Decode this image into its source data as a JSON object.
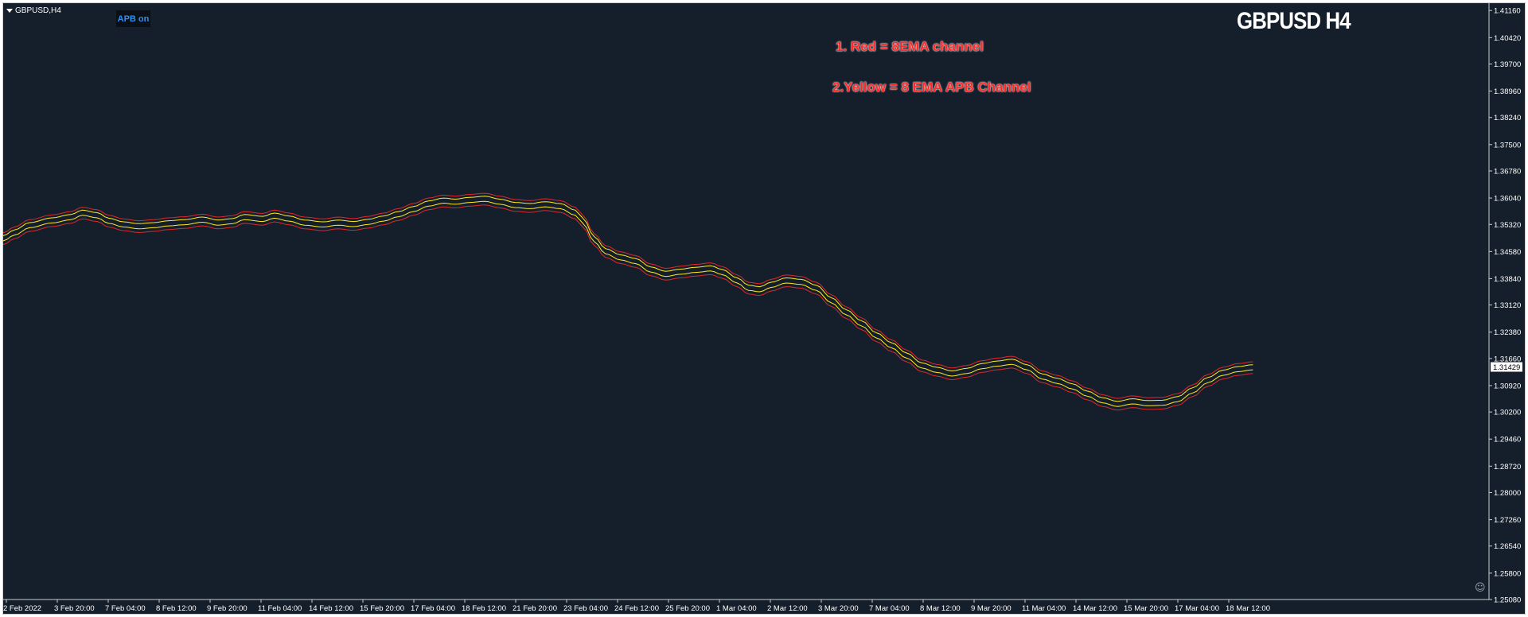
{
  "window": {
    "symbol_label": "GBPUSD,H4"
  },
  "badge": {
    "text": "APB on"
  },
  "overlay": {
    "title": "GBPUSD H4",
    "legend_line_1": "1. Red = 8EMA channel",
    "legend_line_2": "2.Yellow = 8 EMA APB Channel"
  },
  "colors": {
    "background": "#151f2b",
    "frame": "#c8ccd0",
    "axis_text": "#ffffff",
    "red_channel": "#e0262b",
    "yellow_channel": "#ffea1f",
    "price_tag_bg": "#ffffff",
    "price_tag_text": "#000000"
  },
  "chart_data": {
    "type": "line",
    "title": "GBPUSD H4",
    "y_ticks": [
      "1.41160",
      "1.40420",
      "1.39700",
      "1.38960",
      "1.38240",
      "1.37500",
      "1.36780",
      "1.36040",
      "1.35320",
      "1.34580",
      "1.33840",
      "1.33120",
      "1.32380",
      "1.31660",
      "1.30920",
      "1.30200",
      "1.29460",
      "1.28720",
      "1.28000",
      "1.27260",
      "1.26540",
      "1.25800",
      "1.25080"
    ],
    "ylim": [
      1.2508,
      1.4136
    ],
    "x_ticks": [
      "2 Feb 2022",
      "3 Feb 20:00",
      "7 Feb 04:00",
      "8 Feb 12:00",
      "9 Feb 20:00",
      "11 Feb 04:00",
      "14 Feb 12:00",
      "15 Feb 20:00",
      "17 Feb 04:00",
      "18 Feb 12:00",
      "21 Feb 20:00",
      "23 Feb 04:00",
      "24 Feb 12:00",
      "25 Feb 20:00",
      "1 Mar 04:00",
      "2 Mar 12:00",
      "3 Mar 20:00",
      "7 Mar 04:00",
      "8 Mar 12:00",
      "9 Mar 20:00",
      "11 Mar 04:00",
      "14 Mar 12:00",
      "15 Mar 20:00",
      "17 Mar 04:00",
      "18 Mar 12:00"
    ],
    "bars_per_tick": 8,
    "bar_count": 190,
    "current_price": "1.31429",
    "grid": false,
    "center_anchors": [
      [
        0,
        1.3497
      ],
      [
        3,
        1.3513
      ],
      [
        7,
        1.3533
      ],
      [
        13,
        1.3546
      ],
      [
        18,
        1.3555
      ],
      [
        21,
        1.3567
      ],
      [
        25,
        1.356
      ],
      [
        28,
        1.3545
      ],
      [
        32,
        1.3535
      ],
      [
        36,
        1.353
      ],
      [
        40,
        1.3533
      ],
      [
        44,
        1.3538
      ],
      [
        48,
        1.3541
      ],
      [
        53,
        1.3548
      ],
      [
        57,
        1.354
      ],
      [
        61,
        1.3544
      ],
      [
        64,
        1.3555
      ],
      [
        69,
        1.355
      ],
      [
        72,
        1.3559
      ],
      [
        76,
        1.3551
      ],
      [
        80,
        1.354
      ],
      [
        85,
        1.3535
      ],
      [
        89,
        1.354
      ],
      [
        93,
        1.3536
      ],
      [
        97,
        1.3542
      ],
      [
        101,
        1.3551
      ],
      [
        105,
        1.3563
      ],
      [
        109,
        1.3577
      ],
      [
        113,
        1.3592
      ],
      [
        117,
        1.36
      ],
      [
        120,
        1.3597
      ],
      [
        124,
        1.3602
      ],
      [
        128,
        1.3605
      ],
      [
        132,
        1.3597
      ],
      [
        136,
        1.3588
      ],
      [
        140,
        1.3585
      ],
      [
        144,
        1.359
      ],
      [
        148,
        1.3585
      ],
      [
        152,
        1.3567
      ],
      [
        154,
        1.3545
      ],
      [
        157,
        1.3495
      ],
      [
        160,
        1.3462
      ],
      [
        164,
        1.3445
      ],
      [
        168,
        1.3435
      ],
      [
        172,
        1.3412
      ],
      [
        176,
        1.34
      ],
      [
        180,
        1.3406
      ],
      [
        184,
        1.3411
      ],
      [
        188,
        1.3415
      ],
      [
        191,
        1.3405
      ],
      [
        195,
        1.3382
      ],
      [
        198,
        1.3362
      ],
      [
        201,
        1.3358
      ],
      [
        204,
        1.337
      ],
      [
        208,
        1.3382
      ],
      [
        212,
        1.3378
      ],
      [
        216,
        1.3362
      ],
      [
        220,
        1.3328
      ],
      [
        224,
        1.3295
      ],
      [
        228,
        1.3265
      ],
      [
        232,
        1.3232
      ],
      [
        236,
        1.3205
      ],
      [
        240,
        1.3177
      ],
      [
        244,
        1.315
      ],
      [
        248,
        1.3138
      ],
      [
        252,
        1.3128
      ],
      [
        256,
        1.3135
      ],
      [
        260,
        1.3148
      ],
      [
        264,
        1.3155
      ],
      [
        268,
        1.316
      ],
      [
        272,
        1.3145
      ],
      [
        276,
        1.312
      ],
      [
        280,
        1.3108
      ],
      [
        284,
        1.3093
      ],
      [
        288,
        1.3073
      ],
      [
        292,
        1.3055
      ],
      [
        296,
        1.3045
      ],
      [
        300,
        1.3052
      ],
      [
        304,
        1.3047
      ],
      [
        308,
        1.3048
      ],
      [
        312,
        1.3058
      ],
      [
        316,
        1.3082
      ],
      [
        320,
        1.311
      ],
      [
        324,
        1.313
      ],
      [
        328,
        1.314
      ],
      [
        332,
        1.3145
      ]
    ],
    "series": [
      {
        "style": "red upper",
        "offset": 0.0012
      },
      {
        "style": "yellow upper",
        "offset": 0.0004
      },
      {
        "style": "yellow lower",
        "offset": -0.001
      },
      {
        "style": "red lower",
        "offset": -0.002
      }
    ]
  }
}
